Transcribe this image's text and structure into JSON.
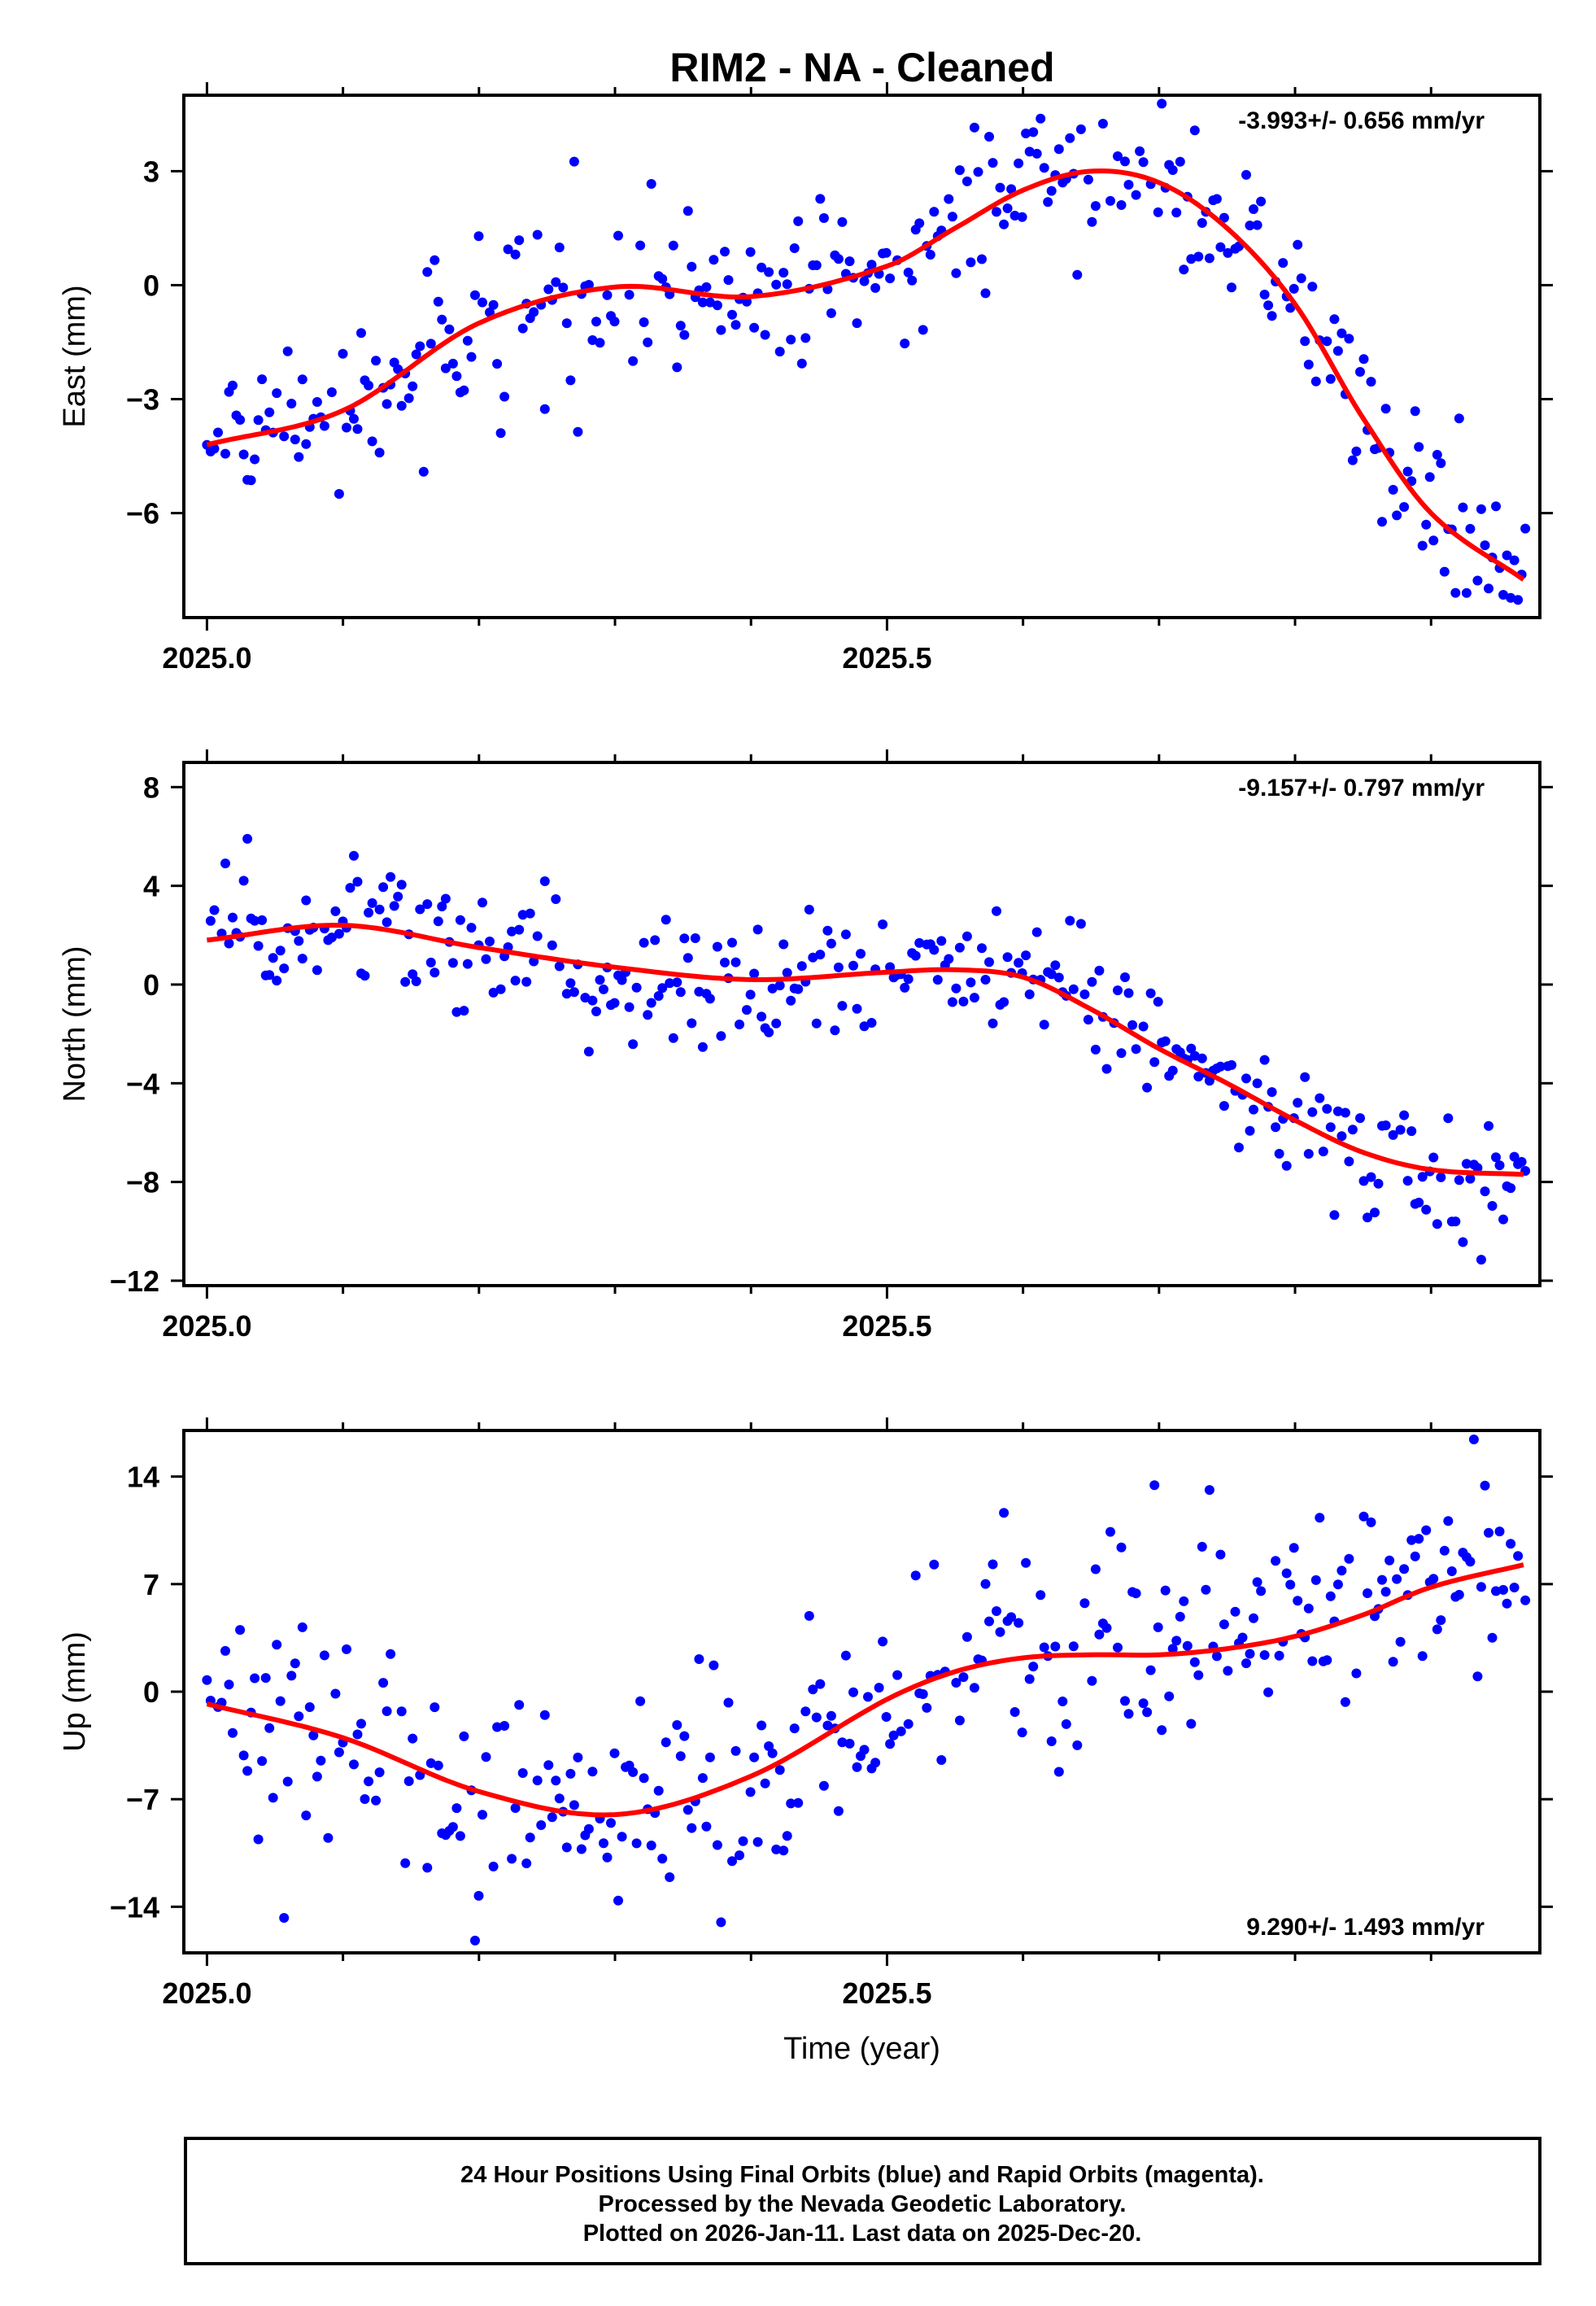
{
  "title": "RIM2  - NA - Cleaned",
  "footer": {
    "line1": "24 Hour Positions Using Final Orbits (blue) and Rapid Orbits (magenta).",
    "line2": "Processed by the Nevada Geodetic Laboratory.",
    "line3": "Plotted on 2026-Jan-11. Last data on 2025-Dec-20."
  },
  "colors": {
    "points": "#0000ff",
    "fit": "#ff0000",
    "axes": "#000000"
  },
  "chart_data": [
    {
      "type": "scatter",
      "ylabel": "East (mm)",
      "xlabel": "",
      "xlim": [
        2024.983,
        2025.98
      ],
      "ylim": [
        -8.75,
        5.0
      ],
      "xticks": [
        2025.0,
        2025.5
      ],
      "xtick_labels": [
        "2025.0",
        "2025.5"
      ],
      "yticks": [
        3,
        0,
        -3,
        -6
      ],
      "ytick_labels": [
        "3",
        "0",
        "−3",
        "−6"
      ],
      "rate": "-3.993+/- 0.656 mm/yr",
      "rate_position": "top-right",
      "fit_knots": {
        "t": [
          2025.0,
          2025.1,
          2025.2,
          2025.3,
          2025.4,
          2025.5,
          2025.55,
          2025.6,
          2025.65,
          2025.7,
          2025.75,
          2025.8,
          2025.85,
          2025.9,
          2025.97
        ],
        "v": [
          -4.2,
          -3.3,
          -1.0,
          -0.05,
          -0.3,
          0.5,
          1.5,
          2.5,
          3.0,
          2.7,
          1.5,
          -0.5,
          -3.5,
          -6.0,
          -7.8
        ]
      }
    },
    {
      "type": "scatter",
      "ylabel": "North (mm)",
      "xlabel": "",
      "xlim": [
        2024.983,
        2025.98
      ],
      "ylim": [
        -12.2,
        9.0
      ],
      "xticks": [
        2025.0,
        2025.5
      ],
      "xtick_labels": [
        "2025.0",
        "2025.5"
      ],
      "yticks": [
        8,
        4,
        0,
        -4,
        -8,
        -12
      ],
      "ytick_labels": [
        "8",
        "4",
        "0",
        "−4",
        "−8",
        "−12"
      ],
      "rate": "-9.157+/- 0.797 mm/yr",
      "rate_position": "top-right",
      "fit_knots": {
        "t": [
          2025.0,
          2025.1,
          2025.2,
          2025.3,
          2025.4,
          2025.5,
          2025.55,
          2025.6,
          2025.65,
          2025.7,
          2025.75,
          2025.8,
          2025.85,
          2025.9,
          2025.97
        ],
        "v": [
          1.8,
          2.4,
          1.5,
          0.7,
          0.2,
          0.5,
          0.6,
          0.3,
          -1.0,
          -2.6,
          -4.0,
          -5.5,
          -6.8,
          -7.5,
          -7.7
        ]
      }
    },
    {
      "type": "scatter",
      "ylabel": "Up (mm)",
      "xlabel": "Time (year)",
      "xlim": [
        2024.983,
        2025.98
      ],
      "ylim": [
        -17.0,
        17.0
      ],
      "xticks": [
        2025.0,
        2025.5
      ],
      "xtick_labels": [
        "2025.0",
        "2025.5"
      ],
      "yticks": [
        14,
        7,
        0,
        -7,
        -14
      ],
      "ytick_labels": [
        "14",
        "7",
        "0",
        "−7",
        "−14"
      ],
      "rate": "9.290+/- 1.493 mm/yr",
      "rate_position": "bottom-right",
      "fit_knots": {
        "t": [
          2025.0,
          2025.1,
          2025.2,
          2025.3,
          2025.4,
          2025.5,
          2025.55,
          2025.6,
          2025.65,
          2025.7,
          2025.75,
          2025.8,
          2025.85,
          2025.9,
          2025.97
        ],
        "v": [
          -0.8,
          -3.0,
          -6.5,
          -8.0,
          -5.5,
          -0.5,
          1.3,
          2.2,
          2.4,
          2.4,
          2.8,
          3.6,
          5.0,
          6.8,
          8.3
        ]
      }
    }
  ]
}
